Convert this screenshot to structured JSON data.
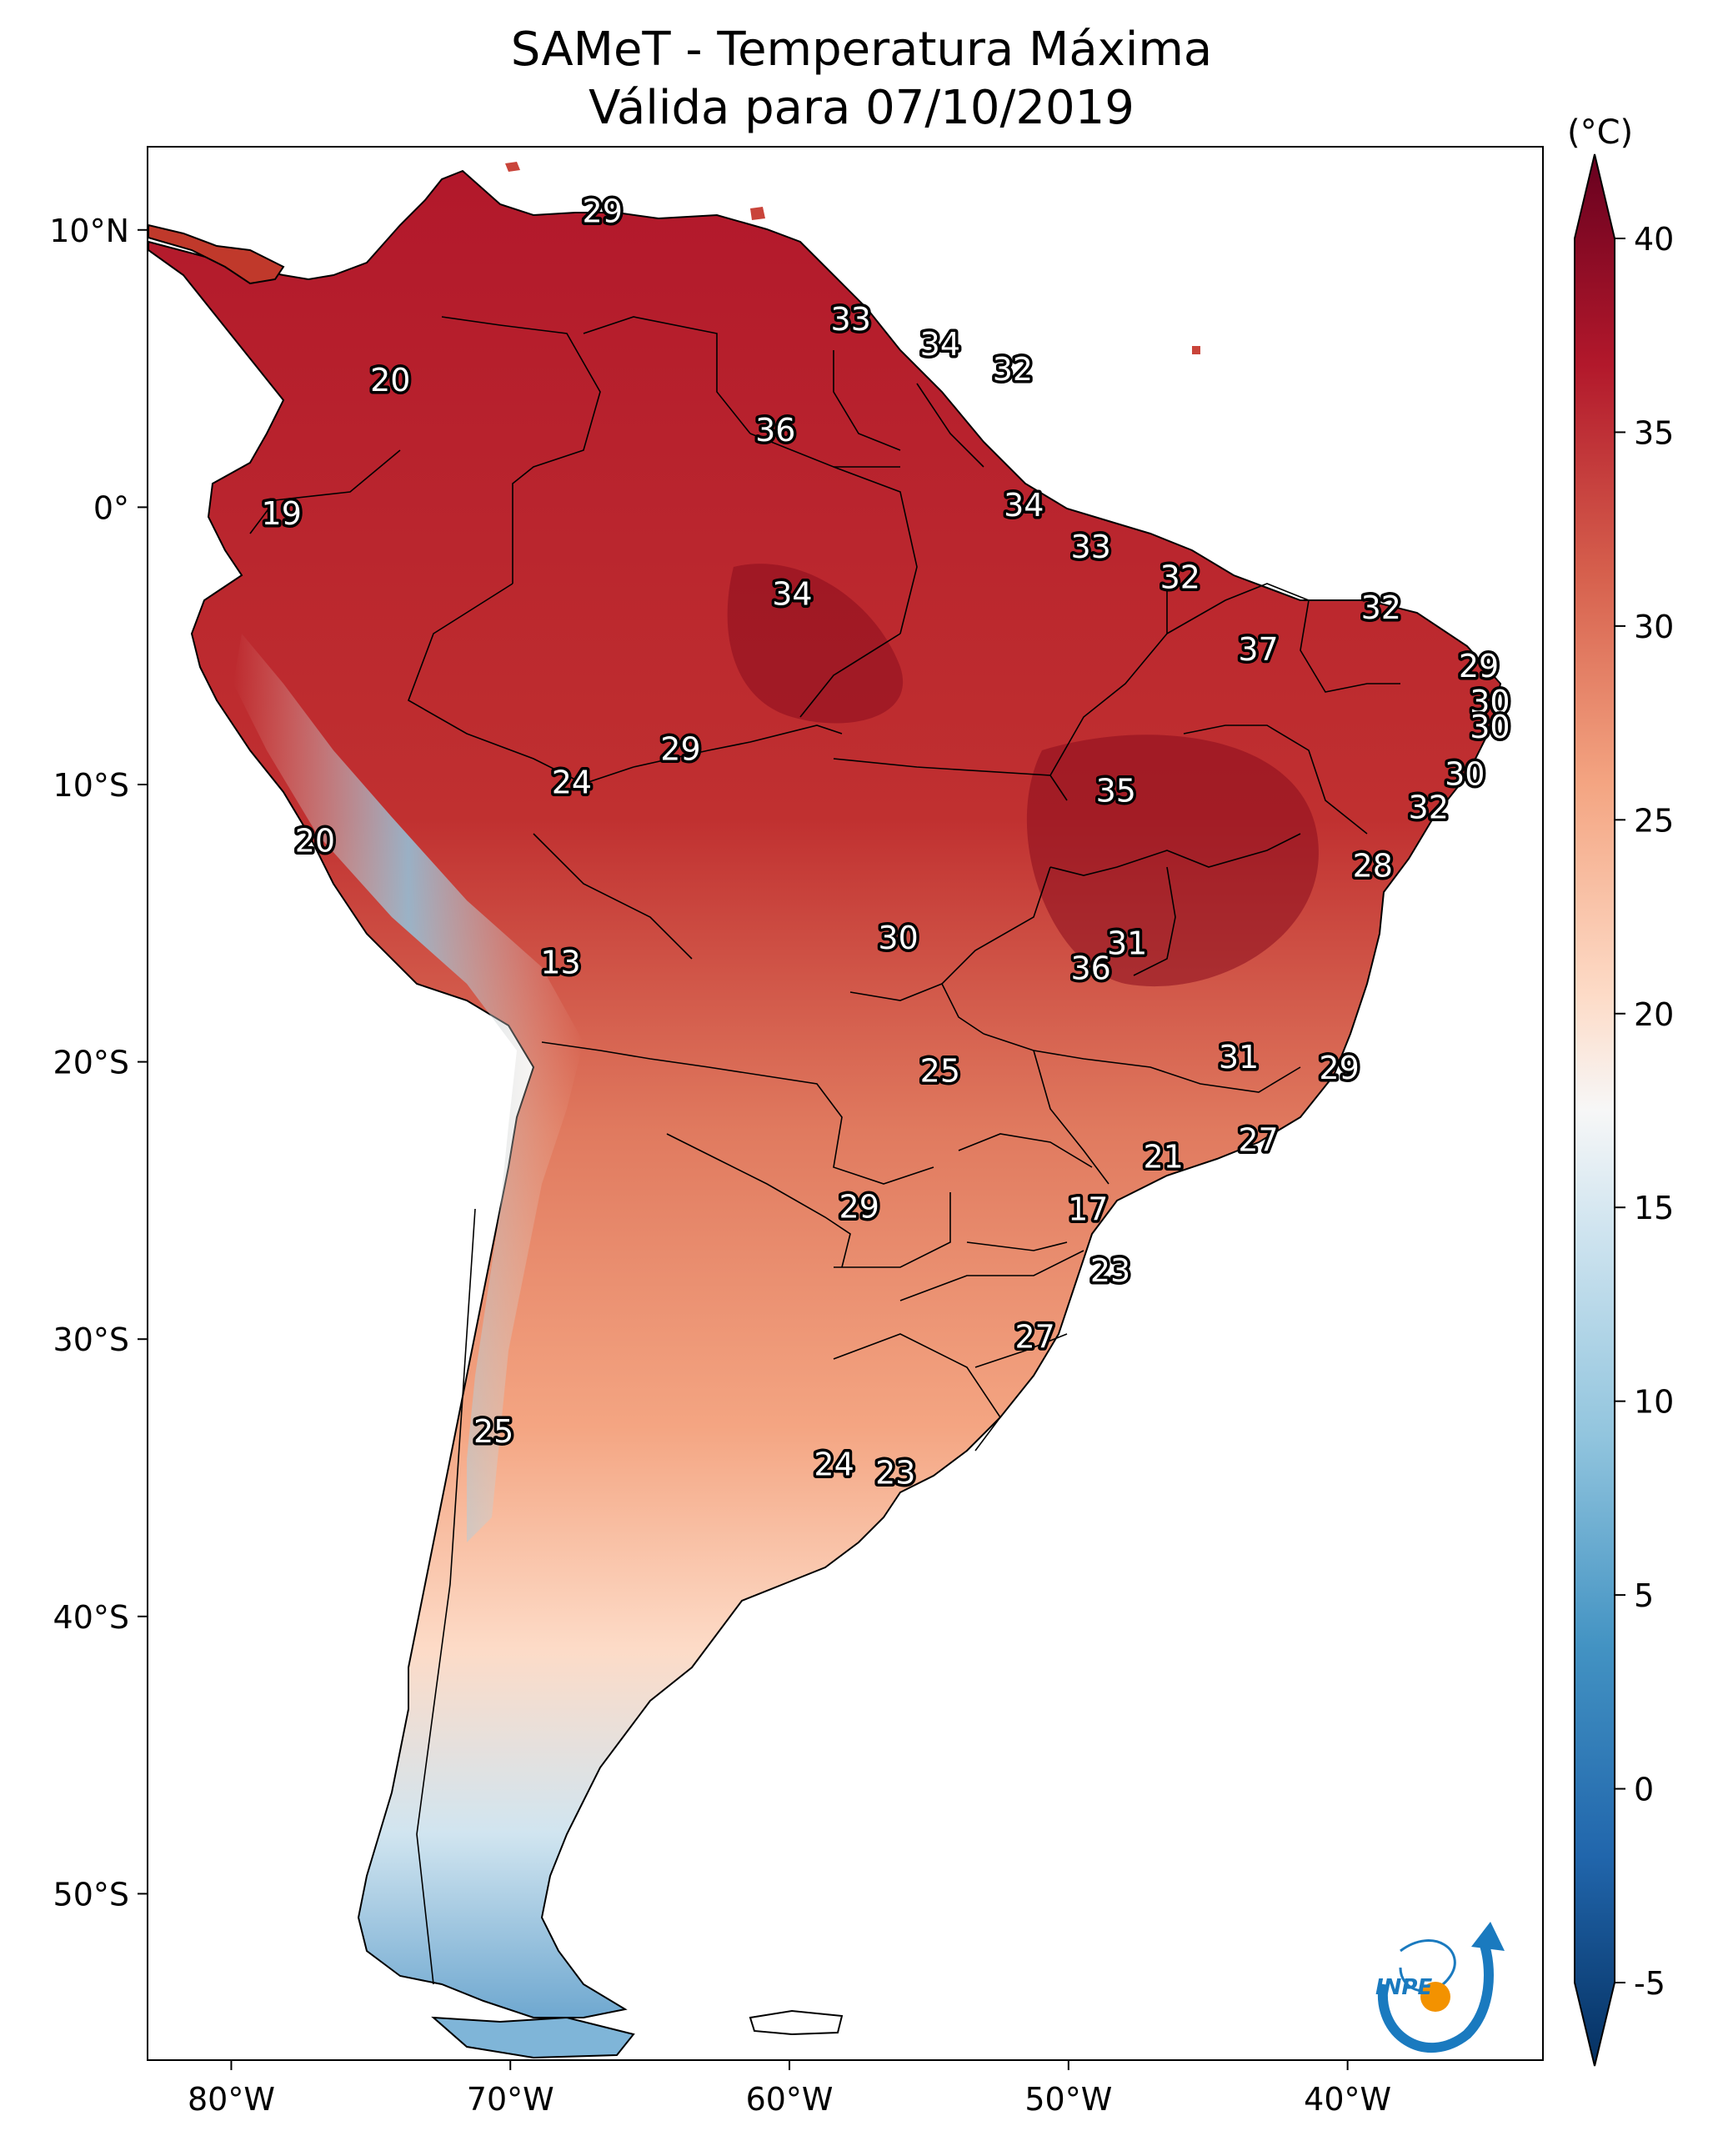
{
  "title": {
    "line1": "SAMeT - Temperatura Máxima",
    "line2": "Válida para 07/10/2019"
  },
  "colorbar": {
    "unit": "(°C)",
    "min": -5,
    "max": 40,
    "ticks": [
      "40",
      "35",
      "30",
      "25",
      "20",
      "15",
      "10",
      "5",
      "0",
      "-5"
    ],
    "colors": {
      "max": "#67001f",
      "high": "#b2182b",
      "warm": "#d6604d",
      "mild": "#f4a582",
      "light": "#fddbc7",
      "neutral": "#f7f7f7",
      "cool": "#d1e5f0",
      "cold": "#92c5de",
      "colder": "#4393c3",
      "coldest": "#2166ac",
      "min": "#053061"
    }
  },
  "axes": {
    "lon_ticks": [
      "80°W",
      "70°W",
      "60°W",
      "50°W",
      "40°W"
    ],
    "lat_ticks": [
      "10°N",
      "0°",
      "10°S",
      "20°S",
      "30°S",
      "40°S",
      "50°S"
    ],
    "lon_range": [
      -83,
      -33
    ],
    "lat_range": [
      -56,
      13
    ]
  },
  "station_labels": [
    {
      "value": "29",
      "lon": -66.7,
      "lat": 10.6
    },
    {
      "value": "20",
      "lon": -74.3,
      "lat": 4.5
    },
    {
      "value": "33",
      "lon": -57.8,
      "lat": 6.7
    },
    {
      "value": "34",
      "lon": -54.6,
      "lat": 5.8
    },
    {
      "value": "32",
      "lon": -52.0,
      "lat": 4.9
    },
    {
      "value": "36",
      "lon": -60.5,
      "lat": 2.7
    },
    {
      "value": "19",
      "lon": -78.2,
      "lat": -0.3
    },
    {
      "value": "34",
      "lon": -51.6,
      "lat": 0.0
    },
    {
      "value": "33",
      "lon": -49.2,
      "lat": -1.5
    },
    {
      "value": "32",
      "lon": -46.0,
      "lat": -2.6
    },
    {
      "value": "34",
      "lon": -59.9,
      "lat": -3.2
    },
    {
      "value": "32",
      "lon": -38.8,
      "lat": -3.7
    },
    {
      "value": "37",
      "lon": -43.2,
      "lat": -5.2
    },
    {
      "value": "29",
      "lon": -35.3,
      "lat": -5.8
    },
    {
      "value": "30",
      "lon": -34.9,
      "lat": -7.1
    },
    {
      "value": "30",
      "lon": -34.9,
      "lat": -8.0
    },
    {
      "value": "29",
      "lon": -63.9,
      "lat": -8.8
    },
    {
      "value": "30",
      "lon": -35.8,
      "lat": -9.7
    },
    {
      "value": "24",
      "lon": -67.8,
      "lat": -10.0
    },
    {
      "value": "35",
      "lon": -48.3,
      "lat": -10.3
    },
    {
      "value": "32",
      "lon": -37.1,
      "lat": -10.9
    },
    {
      "value": "20",
      "lon": -77.0,
      "lat": -12.1
    },
    {
      "value": "28",
      "lon": -39.1,
      "lat": -13.0
    },
    {
      "value": "30",
      "lon": -56.1,
      "lat": -15.6
    },
    {
      "value": "31",
      "lon": -47.9,
      "lat": -15.8
    },
    {
      "value": "13",
      "lon": -68.2,
      "lat": -16.5
    },
    {
      "value": "36",
      "lon": -49.2,
      "lat": -16.7
    },
    {
      "value": "31",
      "lon": -43.9,
      "lat": -19.9
    },
    {
      "value": "25",
      "lon": -54.6,
      "lat": -20.4
    },
    {
      "value": "29",
      "lon": -40.3,
      "lat": -20.3
    },
    {
      "value": "27",
      "lon": -43.2,
      "lat": -22.9
    },
    {
      "value": "21",
      "lon": -46.6,
      "lat": -23.5
    },
    {
      "value": "29",
      "lon": -57.5,
      "lat": -25.3
    },
    {
      "value": "17",
      "lon": -49.3,
      "lat": -25.4
    },
    {
      "value": "23",
      "lon": -48.5,
      "lat": -27.6
    },
    {
      "value": "27",
      "lon": -51.2,
      "lat": -30.0
    },
    {
      "value": "25",
      "lon": -70.6,
      "lat": -33.4
    },
    {
      "value": "24",
      "lon": -58.4,
      "lat": -34.6
    },
    {
      "value": "23",
      "lon": -56.2,
      "lat": -34.9
    }
  ],
  "logo": {
    "text": "INPE",
    "colors": {
      "swirl": "#1a7abf",
      "dot": "#f39200"
    }
  }
}
